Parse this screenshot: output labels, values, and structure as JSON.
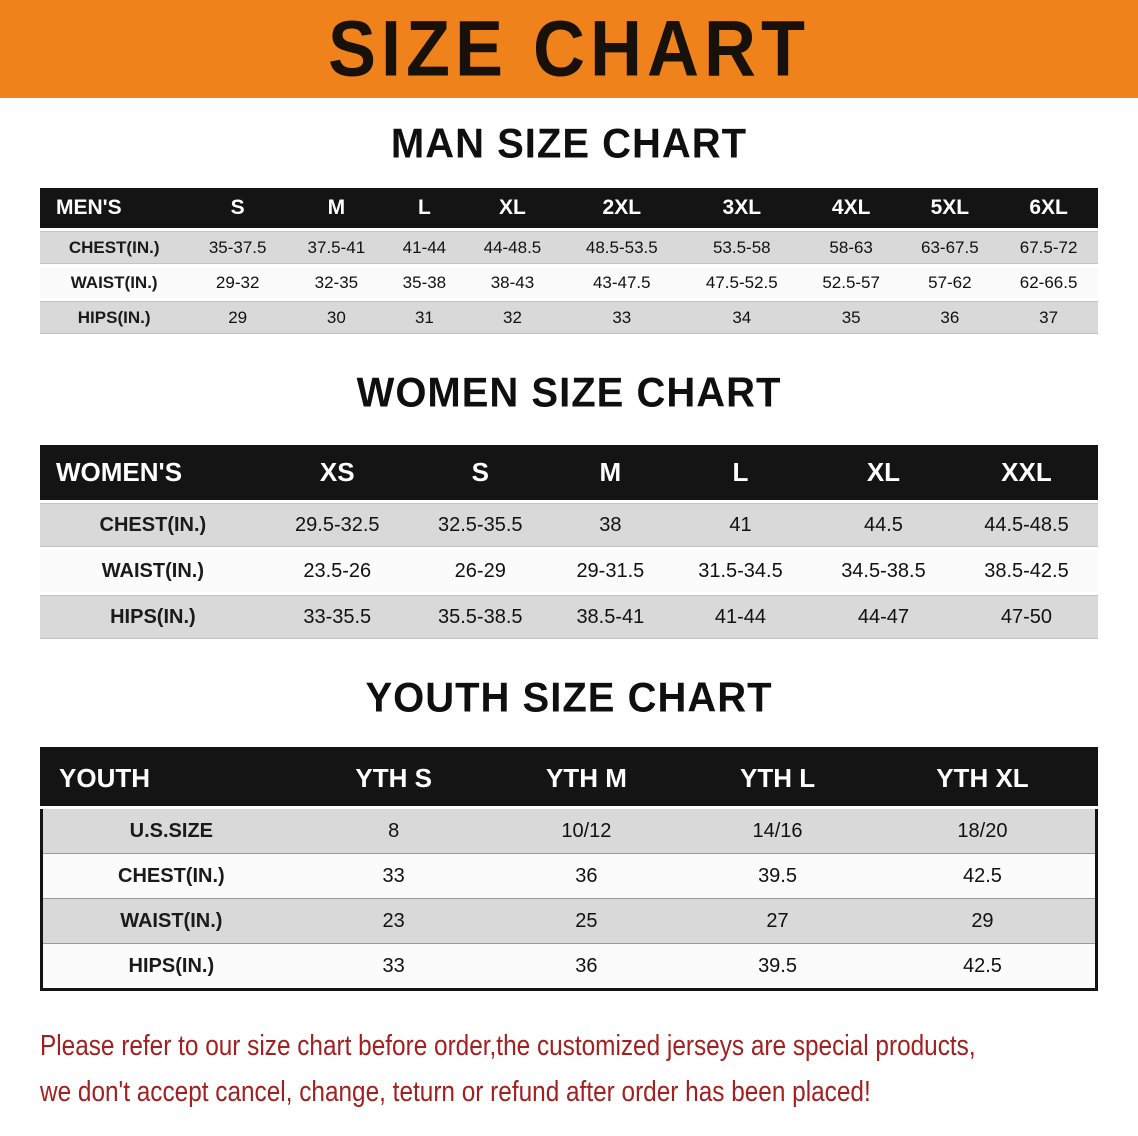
{
  "banner": {
    "title": "SIZE CHART",
    "background_color": "#f0821c"
  },
  "sections": [
    {
      "heading": "MAN SIZE CHART",
      "table": {
        "header_label": "MEN'S",
        "columns": [
          "S",
          "M",
          "L",
          "XL",
          "2XL",
          "3XL",
          "4XL",
          "5XL",
          "6XL"
        ],
        "rows": [
          {
            "label": "CHEST(IN.)",
            "values": [
              "35-37.5",
              "37.5-41",
              "41-44",
              "44-48.5",
              "48.5-53.5",
              "53.5-58",
              "58-63",
              "63-67.5",
              "67.5-72"
            ]
          },
          {
            "label": "WAIST(IN.)",
            "values": [
              "29-32",
              "32-35",
              "35-38",
              "38-43",
              "43-47.5",
              "47.5-52.5",
              "52.5-57",
              "57-62",
              "62-66.5"
            ]
          },
          {
            "label": "HIPS(IN.)",
            "values": [
              "29",
              "30",
              "31",
              "32",
              "33",
              "34",
              "35",
              "36",
              "37"
            ]
          }
        ]
      }
    },
    {
      "heading": "WOMEN SIZE CHART",
      "table": {
        "header_label": "WOMEN'S",
        "columns": [
          "XS",
          "S",
          "M",
          "L",
          "XL",
          "XXL"
        ],
        "rows": [
          {
            "label": "CHEST(IN.)",
            "values": [
              "29.5-32.5",
              "32.5-35.5",
              "38",
              "41",
              "44.5",
              "44.5-48.5"
            ]
          },
          {
            "label": "WAIST(IN.)",
            "values": [
              "23.5-26",
              "26-29",
              "29-31.5",
              "31.5-34.5",
              "34.5-38.5",
              "38.5-42.5"
            ]
          },
          {
            "label": "HIPS(IN.)",
            "values": [
              "33-35.5",
              "35.5-38.5",
              "38.5-41",
              "41-44",
              "44-47",
              "47-50"
            ]
          }
        ]
      }
    },
    {
      "heading": "YOUTH SIZE CHART",
      "table": {
        "header_label": "YOUTH",
        "columns": [
          "YTH S",
          "YTH M",
          "YTH L",
          "YTH XL"
        ],
        "rows": [
          {
            "label": "U.S.SIZE",
            "values": [
              "8",
              "10/12",
              "14/16",
              "18/20"
            ]
          },
          {
            "label": "CHEST(IN.)",
            "values": [
              "33",
              "36",
              "39.5",
              "42.5"
            ]
          },
          {
            "label": "WAIST(IN.)",
            "values": [
              "23",
              "25",
              "27",
              "29"
            ]
          },
          {
            "label": "HIPS(IN.)",
            "values": [
              "33",
              "36",
              "39.5",
              "42.5"
            ]
          }
        ]
      }
    }
  ],
  "disclaimer": {
    "line1": "Please refer to our size chart before order,the customized jerseys are special products,",
    "line2": "we don't accept cancel, change, teturn or refund after order has been placed!",
    "text_color": "#a32020"
  }
}
